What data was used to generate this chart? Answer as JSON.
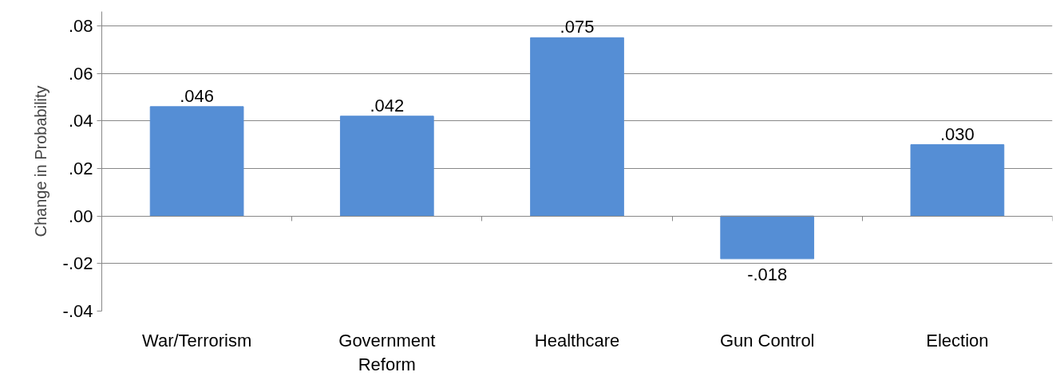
{
  "chart_data": {
    "type": "bar",
    "ylabel": "Change in Probability",
    "categories": [
      "War/Terrorism",
      "Government Reform",
      "Healthcare",
      "Gun Control",
      "Election"
    ],
    "values": [
      0.046,
      0.042,
      0.075,
      -0.018,
      0.03
    ],
    "value_labels": [
      ".046",
      ".042",
      ".075",
      "-.018",
      ".030"
    ],
    "color": "#558ed5",
    "ylim": [
      -0.04,
      0.086
    ],
    "yticks": [
      {
        "value": -0.04,
        "label": "-.04"
      },
      {
        "value": -0.02,
        "label": "-.02"
      },
      {
        "value": 0,
        "label": ".00"
      },
      {
        "value": 0.02,
        "label": ".02"
      },
      {
        "value": 0.04,
        "label": ".04"
      },
      {
        "value": 0.06,
        "label": ".06"
      },
      {
        "value": 0.08,
        "label": ".08"
      }
    ],
    "grid": "y"
  }
}
